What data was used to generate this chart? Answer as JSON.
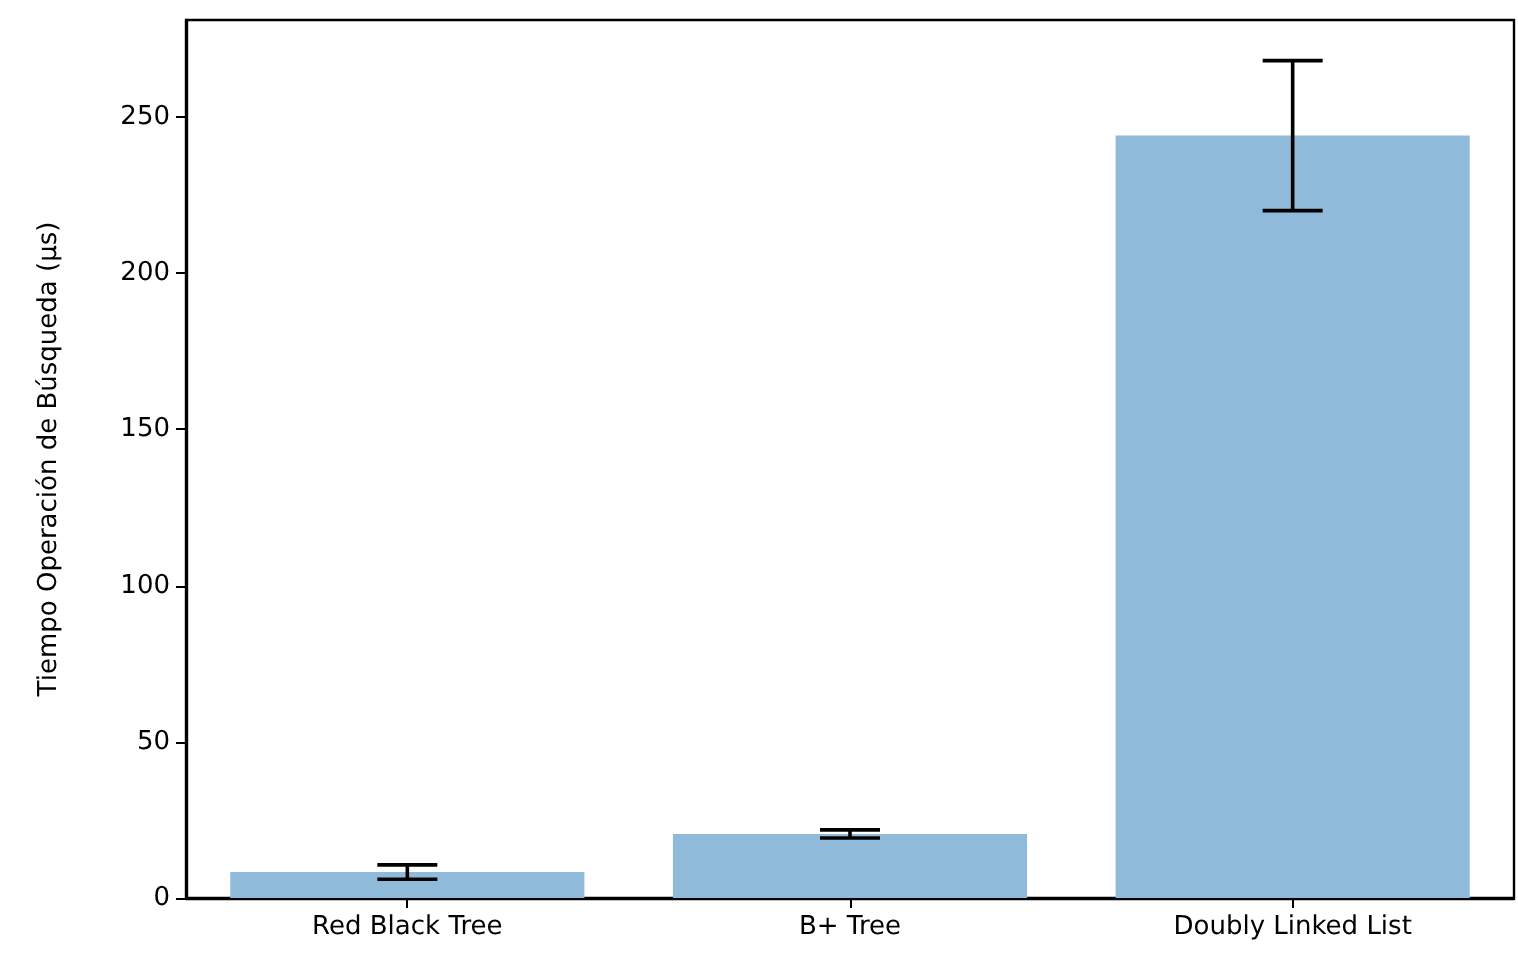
{
  "chart_data": {
    "type": "bar",
    "ylabel": "Tiempo Operación de Búsqueda (µs)",
    "categories": [
      "Red Black Tree",
      "B+ Tree",
      "Doubly Linked List"
    ],
    "values": [
      8.3,
      20.5,
      244
    ],
    "errors": [
      2.3,
      1.3,
      24
    ],
    "color": "#8fbad9",
    "ylim": [
      0,
      281
    ],
    "yticks": [
      0,
      50,
      100,
      150,
      200,
      250
    ],
    "grid": false
  }
}
